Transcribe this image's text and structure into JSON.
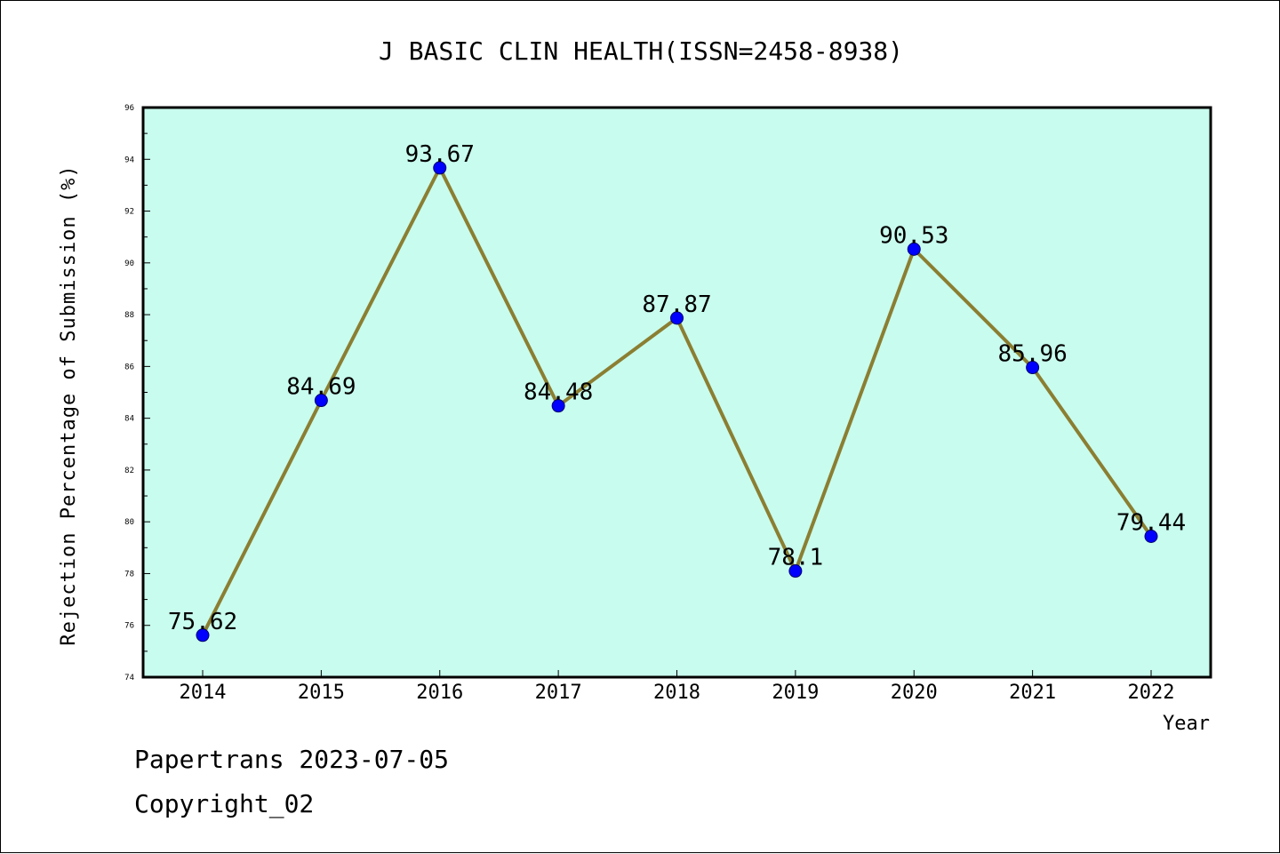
{
  "chart_data": {
    "type": "line",
    "title": "J BASIC CLIN HEALTH(ISSN=2458-8938)",
    "xlabel": "Year",
    "ylabel": "Rejection Percentage of Submission (%)",
    "categories": [
      "2014",
      "2015",
      "2016",
      "2017",
      "2018",
      "2019",
      "2020",
      "2021",
      "2022"
    ],
    "series": [
      {
        "values": [
          75.62,
          84.69,
          93.67,
          84.48,
          87.87,
          78.1,
          90.53,
          85.96,
          79.44
        ],
        "data_labels": [
          "75.62",
          "84.69",
          "93.67",
          "84.48",
          "87.87",
          "78.1",
          "90.53",
          "85.96",
          "79.44"
        ]
      }
    ],
    "ylim": [
      74,
      96
    ],
    "yticks": [
      "74",
      "76",
      "78",
      "80",
      "82",
      "84",
      "86",
      "88",
      "90",
      "92",
      "94",
      "96"
    ],
    "grid": false,
    "plot_background": "#c8fcee",
    "line_color": "#8b7e32",
    "marker_color": "#0000ff"
  },
  "footer": {
    "line1": "Papertrans 2023-07-05",
    "line2": "Copyright_02"
  }
}
